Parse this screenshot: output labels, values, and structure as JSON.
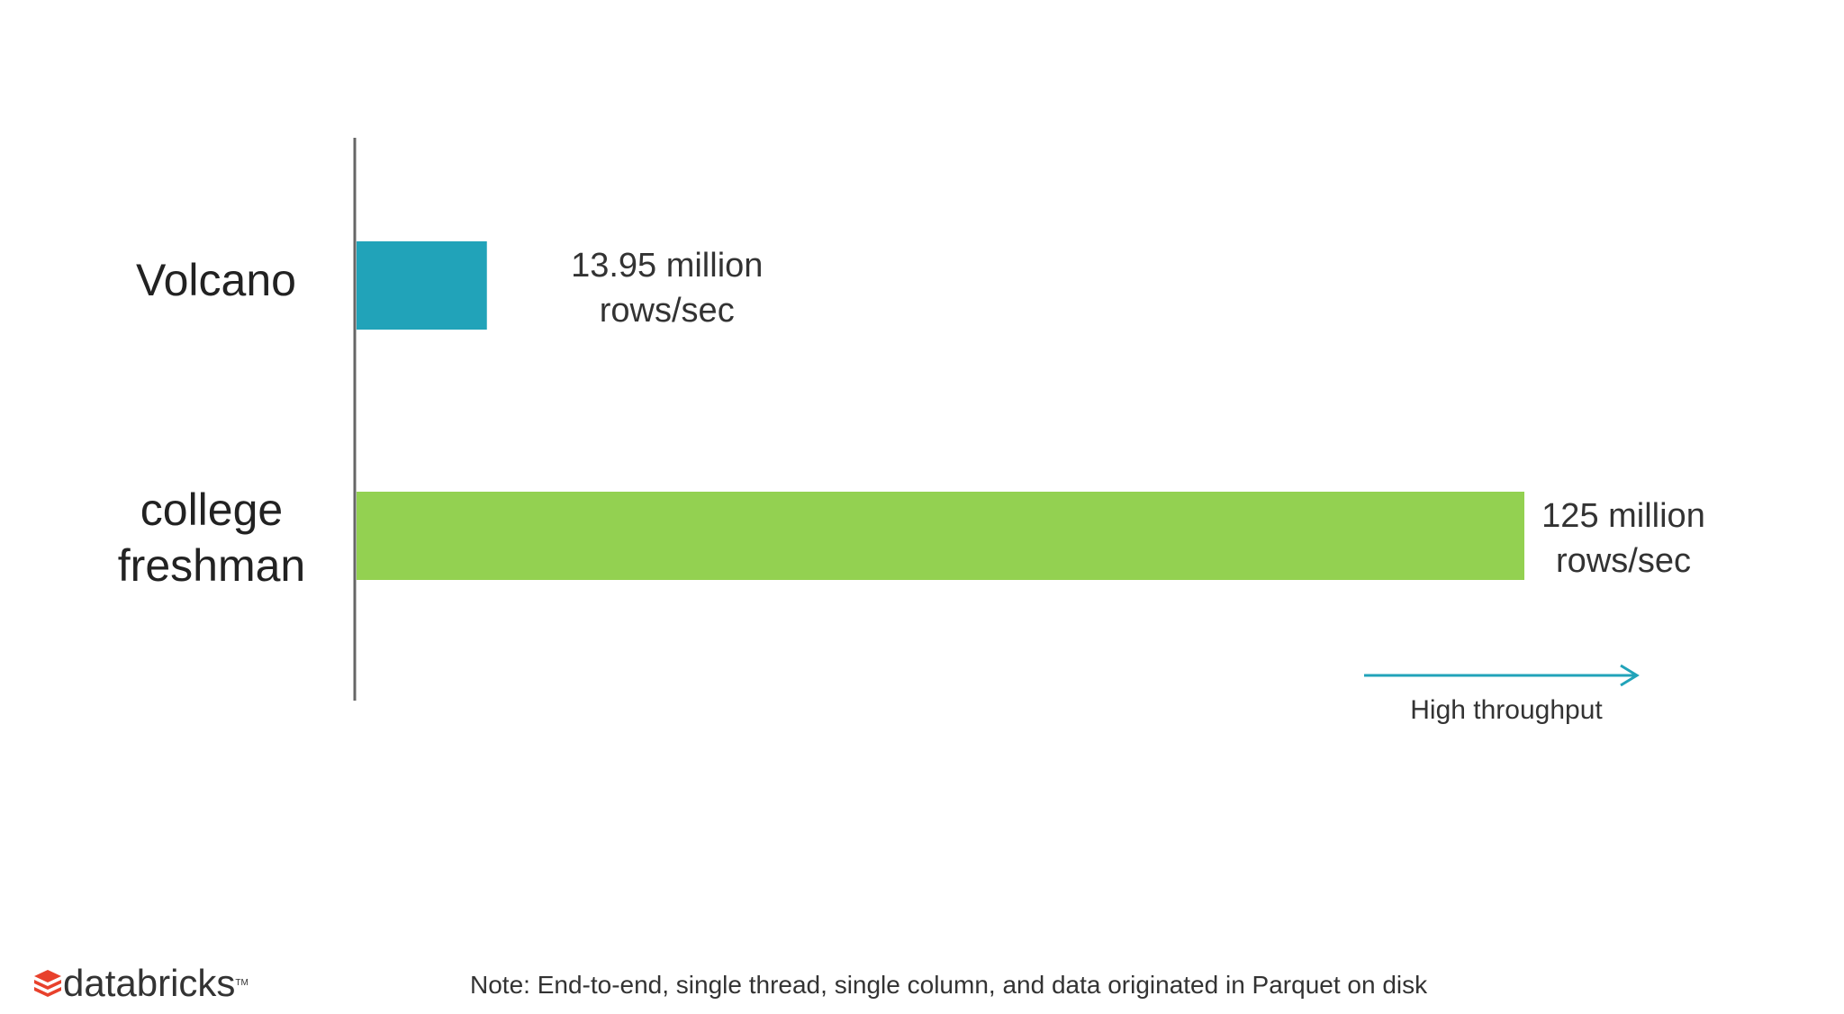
{
  "chart_data": {
    "type": "bar",
    "orientation": "horizontal",
    "categories": [
      "Volcano",
      "college\nfreshman"
    ],
    "values": [
      13.95,
      125
    ],
    "unit": "million rows/sec",
    "value_labels": [
      {
        "line1": "13.95 million",
        "line2": "rows/sec"
      },
      {
        "line1": "125 million",
        "line2": "rows/sec"
      }
    ],
    "colors": [
      "#21a3b9",
      "#93d151"
    ],
    "arrow_label": "High throughput",
    "arrow_color": "#21a3b9",
    "xlim": [
      0,
      125
    ],
    "grid": false,
    "note": "Note: End-to-end,  single thread, single column,  and data originated  in Parquet on disk"
  },
  "branding": {
    "logo_text": "databricks",
    "logo_tm": "TM",
    "logo_icon": "databricks-stack-icon",
    "logo_color": "#e8412c"
  }
}
